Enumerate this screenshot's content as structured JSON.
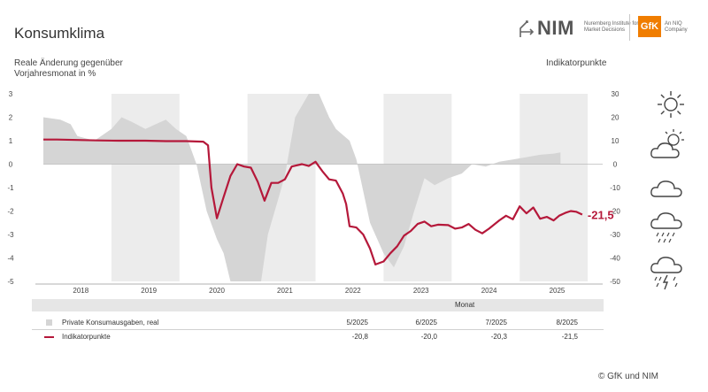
{
  "header": {
    "title": "Konsumklima",
    "left_axis_label_line1": "Reale Änderung gegenüber",
    "left_axis_label_line2": "Vorjahresmonat in %",
    "right_axis_label": "Indikatorpunkte"
  },
  "logo": {
    "nim_word": "NIM",
    "nim_sub": "Nuremberg Institute for Market Decisions",
    "gfk_word": "GfK",
    "gfk_sub": "An NIQ Company"
  },
  "chart_data": {
    "type": "line",
    "title": "",
    "x_years": [
      "2018",
      "2019",
      "2020",
      "2021",
      "2022",
      "2023",
      "2024",
      "2025"
    ],
    "left_axis": {
      "label": "Reale Änderung gegenüber Vorjahresmonat in %",
      "min": -5,
      "max": 3,
      "ticks": [
        3,
        2,
        1,
        0,
        -1,
        -2,
        -3,
        -4,
        -5
      ]
    },
    "right_axis": {
      "label": "Indikatorpunkte",
      "min": -50,
      "max": 30,
      "ticks": [
        30,
        20,
        10,
        0,
        -10,
        -20,
        -30,
        -40,
        -50
      ]
    },
    "shaded_years": [
      "2019",
      "2021",
      "2023",
      "2025"
    ],
    "end_label": "-21,5",
    "series": [
      {
        "name": "Private Konsumausgaben, real",
        "kind": "area",
        "color": "#d5d5d5",
        "axis": "left",
        "points": [
          [
            2017.5,
            2.0
          ],
          [
            2017.75,
            1.9
          ],
          [
            2017.9,
            1.7
          ],
          [
            2018.0,
            1.2
          ],
          [
            2018.25,
            1.0
          ],
          [
            2018.5,
            1.5
          ],
          [
            2018.65,
            2.0
          ],
          [
            2018.8,
            1.8
          ],
          [
            2019.0,
            1.5
          ],
          [
            2019.15,
            1.7
          ],
          [
            2019.3,
            1.9
          ],
          [
            2019.45,
            1.5
          ],
          [
            2019.6,
            1.2
          ],
          [
            2019.75,
            0.0
          ],
          [
            2019.9,
            -2.0
          ],
          [
            2020.05,
            -3.2
          ],
          [
            2020.15,
            -3.8
          ],
          [
            2020.25,
            -5.0
          ],
          [
            2020.7,
            -5.0
          ],
          [
            2020.8,
            -3.0
          ],
          [
            2020.95,
            -1.5
          ],
          [
            2021.05,
            -0.5
          ],
          [
            2021.2,
            2.0
          ],
          [
            2021.4,
            3.0
          ],
          [
            2021.55,
            3.0
          ],
          [
            2021.7,
            2.0
          ],
          [
            2021.8,
            1.5
          ],
          [
            2022.0,
            1.0
          ],
          [
            2022.1,
            0.2
          ],
          [
            2022.3,
            -2.5
          ],
          [
            2022.5,
            -3.8
          ],
          [
            2022.65,
            -4.4
          ],
          [
            2022.8,
            -3.5
          ],
          [
            2022.95,
            -2.0
          ],
          [
            2023.1,
            -0.6
          ],
          [
            2023.25,
            -0.9
          ],
          [
            2023.45,
            -0.6
          ],
          [
            2023.65,
            -0.4
          ],
          [
            2023.8,
            0.0
          ],
          [
            2024.0,
            -0.1
          ],
          [
            2024.2,
            0.1
          ],
          [
            2024.4,
            0.2
          ],
          [
            2024.6,
            0.3
          ],
          [
            2024.8,
            0.4
          ],
          [
            2025.0,
            0.45
          ],
          [
            2025.1,
            0.5
          ]
        ]
      },
      {
        "name": "Indikatorpunkte",
        "kind": "line",
        "color": "#b5183a",
        "axis": "right",
        "points": [
          [
            2017.5,
            10.5
          ],
          [
            2017.7,
            10.5
          ],
          [
            2018.0,
            10.3
          ],
          [
            2018.3,
            10.1
          ],
          [
            2018.6,
            10.0
          ],
          [
            2019.0,
            10.0
          ],
          [
            2019.3,
            9.8
          ],
          [
            2019.6,
            9.8
          ],
          [
            2019.85,
            9.6
          ],
          [
            2019.92,
            8.0
          ],
          [
            2019.97,
            -10.0
          ],
          [
            2020.05,
            -23.1
          ],
          [
            2020.15,
            -14.0
          ],
          [
            2020.25,
            -5.0
          ],
          [
            2020.35,
            0.0
          ],
          [
            2020.45,
            -1.0
          ],
          [
            2020.55,
            -1.5
          ],
          [
            2020.65,
            -7.5
          ],
          [
            2020.75,
            -15.6
          ],
          [
            2020.85,
            -8.0
          ],
          [
            2020.95,
            -8.0
          ],
          [
            2021.05,
            -6.5
          ],
          [
            2021.15,
            -1.0
          ],
          [
            2021.3,
            0.0
          ],
          [
            2021.4,
            -0.8
          ],
          [
            2021.5,
            1.0
          ],
          [
            2021.6,
            -3.0
          ],
          [
            2021.7,
            -6.5
          ],
          [
            2021.8,
            -7.0
          ],
          [
            2021.9,
            -12.5
          ],
          [
            2021.95,
            -17.0
          ],
          [
            2022.0,
            -26.5
          ],
          [
            2022.1,
            -27.0
          ],
          [
            2022.2,
            -30.0
          ],
          [
            2022.3,
            -36.0
          ],
          [
            2022.38,
            -42.8
          ],
          [
            2022.5,
            -41.5
          ],
          [
            2022.6,
            -38.0
          ],
          [
            2022.7,
            -35.0
          ],
          [
            2022.8,
            -30.5
          ],
          [
            2022.9,
            -28.5
          ],
          [
            2023.0,
            -25.5
          ],
          [
            2023.1,
            -24.5
          ],
          [
            2023.2,
            -26.5
          ],
          [
            2023.3,
            -25.8
          ],
          [
            2023.45,
            -26.0
          ],
          [
            2023.55,
            -27.5
          ],
          [
            2023.65,
            -27.0
          ],
          [
            2023.75,
            -25.5
          ],
          [
            2023.85,
            -28.0
          ],
          [
            2023.95,
            -29.5
          ],
          [
            2024.05,
            -27.5
          ],
          [
            2024.2,
            -24.0
          ],
          [
            2024.3,
            -22.0
          ],
          [
            2024.4,
            -23.5
          ],
          [
            2024.5,
            -18.0
          ],
          [
            2024.6,
            -21.0
          ],
          [
            2024.7,
            -18.5
          ],
          [
            2024.8,
            -23.3
          ],
          [
            2024.9,
            -22.5
          ],
          [
            2025.0,
            -24.0
          ],
          [
            2025.08,
            -22.0
          ],
          [
            2025.17,
            -20.8
          ],
          [
            2025.25,
            -20.0
          ],
          [
            2025.33,
            -20.3
          ],
          [
            2025.42,
            -21.5
          ]
        ]
      }
    ]
  },
  "legend": {
    "header": "Monat",
    "months": [
      "5/2025",
      "6/2025",
      "7/2025",
      "8/2025"
    ],
    "rows": [
      {
        "name": "Private Konsumausgaben, real",
        "values": [
          "",
          "",
          "",
          ""
        ]
      },
      {
        "name": "Indikatorpunkte",
        "values": [
          "-20,8",
          "-20,0",
          "-20,3",
          "-21,5"
        ]
      }
    ]
  },
  "weather_icons": [
    "sun-icon",
    "sun-cloud-icon",
    "cloud-icon",
    "rain-cloud-icon",
    "storm-cloud-icon"
  ],
  "footer": {
    "copyright": "© GfK und NIM"
  }
}
